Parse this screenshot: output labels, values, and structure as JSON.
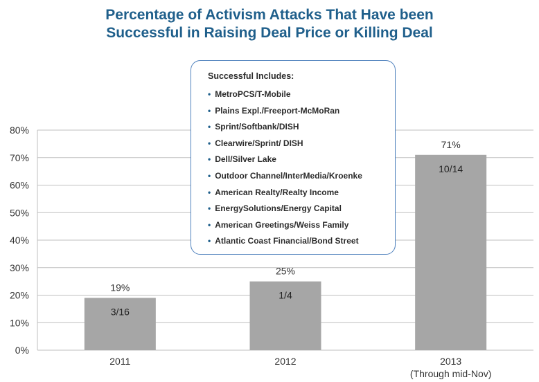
{
  "chart_data": {
    "type": "bar",
    "title_lines": [
      "Percentage of Activism Attacks That Have been",
      "Successful in Raising Deal Price or Killing Deal"
    ],
    "categories": [
      {
        "label": "2011",
        "sublabel": ""
      },
      {
        "label": "2012",
        "sublabel": ""
      },
      {
        "label": "2013",
        "sublabel": "(Through mid-Nov)"
      }
    ],
    "values": [
      19,
      25,
      71
    ],
    "value_labels": [
      "19%",
      "25%",
      "71%"
    ],
    "inner_labels": [
      "3/16",
      "1/4",
      "10/14"
    ],
    "ylim": [
      0,
      80
    ],
    "yticks": [
      {
        "value": 0,
        "label": "0%"
      },
      {
        "value": 10,
        "label": "10%"
      },
      {
        "value": 20,
        "label": "20%"
      },
      {
        "value": 30,
        "label": "30%"
      },
      {
        "value": 40,
        "label": "40%"
      },
      {
        "value": 50,
        "label": "50%"
      },
      {
        "value": 60,
        "label": "60%"
      },
      {
        "value": 70,
        "label": "70%"
      },
      {
        "value": 80,
        "label": "80%"
      }
    ],
    "grid": true,
    "bar_color": "#a6a6a6",
    "grid_color": "#bfbfbf",
    "title_color": "#1f5f8b"
  },
  "callout": {
    "heading": "Successful Includes:",
    "items": [
      "MetroPCS/T-Mobile",
      "Plains Expl./Freeport-McMoRan",
      "Sprint/Softbank/DISH",
      "Clearwire/Sprint/ DISH",
      "Dell/Silver Lake",
      "Outdoor Channel/InterMedia/Kroenke",
      "American Realty/Realty Income",
      "EnergySolutions/Energy Capital",
      "American Greetings/Weiss Family",
      "Atlantic Coast Financial/Bond Street"
    ],
    "border_color": "#4f81bd"
  }
}
